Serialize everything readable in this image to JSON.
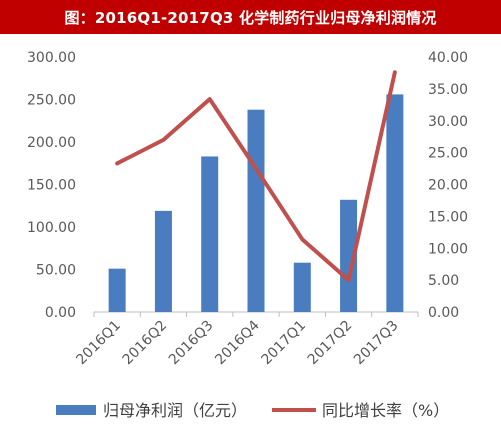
{
  "title": "图：2016Q1-2017Q3 化学制药行业归母净利润情况",
  "colors": {
    "title_bg": "#c00000",
    "bar": "#4a7dbf",
    "line": "#c0504d",
    "axis_text": "#595959"
  },
  "chart_data": {
    "type": "bar",
    "categories": [
      "2016Q1",
      "2016Q2",
      "2016Q3",
      "2016Q4",
      "2017Q1",
      "2017Q2",
      "2017Q3"
    ],
    "series": [
      {
        "name": "归母净利润（亿元）",
        "type": "bar",
        "axis": "left",
        "values": [
          51,
          119,
          183,
          238,
          58,
          132,
          256
        ]
      },
      {
        "name": "同比增长率（%）",
        "type": "line",
        "axis": "right",
        "values": [
          23.3,
          27.0,
          33.4,
          22.5,
          11.4,
          5.0,
          37.6
        ]
      }
    ],
    "y_left": {
      "range": [
        0,
        300
      ],
      "ticks": [
        "0.00",
        "50.00",
        "100.00",
        "150.00",
        "200.00",
        "250.00",
        "300.00"
      ]
    },
    "y_right": {
      "range": [
        0,
        40
      ],
      "ticks": [
        "0.00",
        "5.00",
        "10.00",
        "15.00",
        "20.00",
        "25.00",
        "30.00",
        "35.00",
        "40.00"
      ]
    },
    "grid": false,
    "legend_position": "bottom"
  }
}
